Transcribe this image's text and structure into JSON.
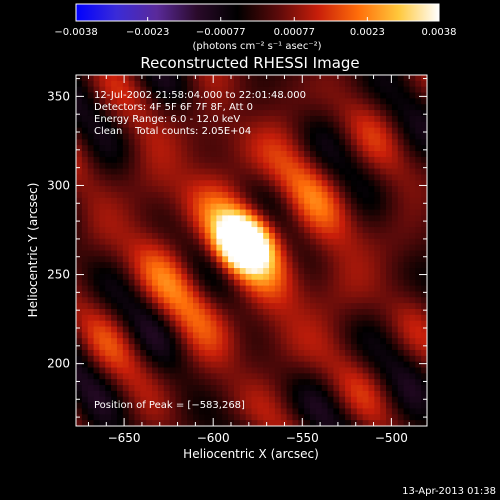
{
  "chart_data": {
    "type": "heatmap",
    "title": "Reconstructed RHESSI Image",
    "xlabel": "Heliocentric X (arcsec)",
    "ylabel": "Heliocentric Y (arcsec)",
    "xlim": [
      -677,
      -480
    ],
    "ylim": [
      165,
      362
    ],
    "x_ticks": [
      -650,
      -600,
      -550,
      -500
    ],
    "y_ticks": [
      200,
      250,
      300,
      350
    ],
    "x_tick_labels": [
      "−650",
      "−600",
      "−550",
      "−500"
    ],
    "y_tick_labels": [
      "200",
      "250",
      "300",
      "350"
    ],
    "annotation_lines": [
      "12-Jul-2002 21:58:04.000 to 22:01:48.000",
      "Detectors: 4F 5F 6F 7F 8F, Att 0",
      "Energy Range: 6.0 - 12.0 keV",
      "Clean    Total counts: 2.05E+04"
    ],
    "peak_label": "Position of Peak = [−583,268]",
    "peak": [
      -583,
      268
    ],
    "colorbar": {
      "range": [
        -0.0038,
        0.0038
      ],
      "tick_values": [
        -0.0038,
        -0.0023,
        -0.00077,
        0.00077,
        0.0023,
        0.0038
      ],
      "tick_labels": [
        "−0.0038",
        "−0.0023",
        "−0.00077",
        "0.00077",
        "0.0023",
        "0.0038"
      ],
      "units": "(photons cm⁻² s⁻¹ asec⁻²)",
      "colors": [
        "#0000ff",
        "#3a2bd8",
        "#5a2a9a",
        "#2a0a2a",
        "#000000",
        "#5a0a0a",
        "#c81e0a",
        "#ff6e0a",
        "#ffc83c",
        "#ffffff"
      ]
    },
    "grid": false
  },
  "footer_date": "13-Apr-2013 01:38"
}
